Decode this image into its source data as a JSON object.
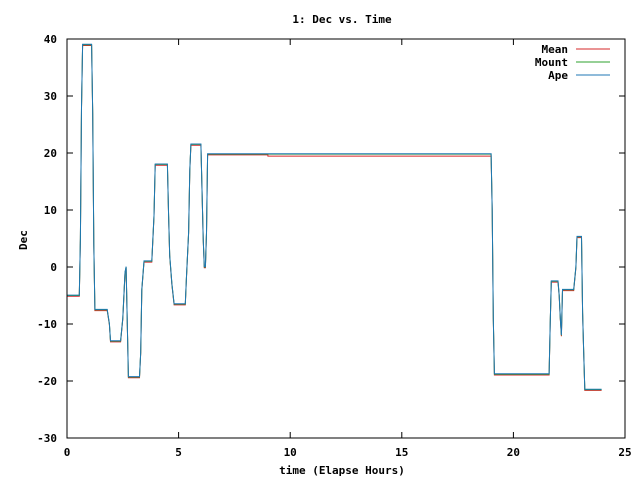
{
  "chart_data": {
    "type": "line",
    "title": "1: Dec vs. Time",
    "xlabel": "time (Elapse Hours)",
    "ylabel": "Dec",
    "xlim": [
      0,
      25
    ],
    "ylim": [
      -30,
      40
    ],
    "xticks": [
      0,
      5,
      10,
      15,
      20,
      25
    ],
    "yticks": [
      -30,
      -20,
      -10,
      0,
      10,
      20,
      30,
      40
    ],
    "xtick_labels": [
      "0",
      "5",
      "10",
      "15",
      "20",
      "25"
    ],
    "ytick_labels": [
      "-30",
      "-20",
      "-10",
      "0",
      "10",
      "20",
      "30",
      "40"
    ],
    "grid": false,
    "legend": "top-right",
    "series": [
      {
        "name": "Mean",
        "color": "#d62728",
        "points": [
          [
            0,
            -5
          ],
          [
            0.55,
            -5
          ],
          [
            0.6,
            5
          ],
          [
            0.65,
            28
          ],
          [
            0.7,
            39
          ],
          [
            1.1,
            39
          ],
          [
            1.15,
            27
          ],
          [
            1.2,
            4
          ],
          [
            1.25,
            -7.5
          ],
          [
            1.8,
            -7.5
          ],
          [
            1.9,
            -10
          ],
          [
            1.95,
            -13
          ],
          [
            2.4,
            -13
          ],
          [
            2.5,
            -9
          ],
          [
            2.55,
            -5
          ],
          [
            2.6,
            -1
          ],
          [
            2.65,
            0
          ],
          [
            2.7,
            -10
          ],
          [
            2.75,
            -19.3
          ],
          [
            3.25,
            -19.3
          ],
          [
            3.3,
            -15
          ],
          [
            3.35,
            -4
          ],
          [
            3.45,
            1
          ],
          [
            3.8,
            1
          ],
          [
            3.9,
            9
          ],
          [
            3.95,
            18
          ],
          [
            4.5,
            18
          ],
          [
            4.55,
            9
          ],
          [
            4.6,
            2
          ],
          [
            4.7,
            -3
          ],
          [
            4.8,
            -6.5
          ],
          [
            5.3,
            -6.5
          ],
          [
            5.35,
            -2
          ],
          [
            5.45,
            6
          ],
          [
            5.5,
            17
          ],
          [
            5.55,
            21.5
          ],
          [
            6.0,
            21.5
          ],
          [
            6.1,
            5
          ],
          [
            6.15,
            0
          ],
          [
            6.2,
            0
          ],
          [
            6.25,
            6
          ],
          [
            6.3,
            19.8
          ],
          [
            9,
            19.8
          ],
          [
            9,
            19.6
          ],
          [
            19.0,
            19.6
          ],
          [
            19.05,
            10
          ],
          [
            19.1,
            -9
          ],
          [
            19.15,
            -18.8
          ],
          [
            21.6,
            -18.8
          ],
          [
            21.65,
            -10
          ],
          [
            21.7,
            -2.5
          ],
          [
            22.0,
            -2.5
          ],
          [
            22.05,
            -5
          ],
          [
            22.1,
            -9
          ],
          [
            22.15,
            -12
          ],
          [
            22.2,
            -4
          ],
          [
            22.7,
            -4
          ],
          [
            22.8,
            0
          ],
          [
            22.85,
            5.3
          ],
          [
            23.05,
            5.3
          ],
          [
            23.1,
            -8
          ],
          [
            23.15,
            -15
          ],
          [
            23.2,
            -21.5
          ],
          [
            23.95,
            -21.5
          ]
        ]
      },
      {
        "name": "Mount",
        "color": "#2ca02c",
        "points": [
          [
            0,
            -5
          ],
          [
            0.55,
            -5
          ],
          [
            0.6,
            5
          ],
          [
            0.65,
            28
          ],
          [
            0.7,
            39
          ],
          [
            1.1,
            39
          ],
          [
            1.15,
            27
          ],
          [
            1.2,
            4
          ],
          [
            1.25,
            -7.5
          ],
          [
            1.8,
            -7.5
          ],
          [
            1.9,
            -10
          ],
          [
            1.95,
            -13
          ],
          [
            2.4,
            -13
          ],
          [
            2.5,
            -9
          ],
          [
            2.55,
            -5
          ],
          [
            2.6,
            -1
          ],
          [
            2.65,
            0
          ],
          [
            2.7,
            -10
          ],
          [
            2.75,
            -19.3
          ],
          [
            3.25,
            -19.3
          ],
          [
            3.3,
            -15
          ],
          [
            3.35,
            -4
          ],
          [
            3.45,
            1
          ],
          [
            3.8,
            1
          ],
          [
            3.9,
            9
          ],
          [
            3.95,
            18
          ],
          [
            4.5,
            18
          ],
          [
            4.55,
            9
          ],
          [
            4.6,
            2
          ],
          [
            4.7,
            -3
          ],
          [
            4.8,
            -6.5
          ],
          [
            5.3,
            -6.5
          ],
          [
            5.35,
            -2
          ],
          [
            5.45,
            6
          ],
          [
            5.5,
            17
          ],
          [
            5.55,
            21.5
          ],
          [
            6.0,
            21.5
          ],
          [
            6.1,
            5
          ],
          [
            6.15,
            0
          ],
          [
            6.2,
            0
          ],
          [
            6.25,
            6
          ],
          [
            6.3,
            19.8
          ],
          [
            19.0,
            19.8
          ],
          [
            19.05,
            10
          ],
          [
            19.1,
            -9
          ],
          [
            19.15,
            -18.8
          ],
          [
            21.6,
            -18.8
          ],
          [
            21.65,
            -10
          ],
          [
            21.7,
            -2.5
          ],
          [
            22.0,
            -2.5
          ],
          [
            22.05,
            -5
          ],
          [
            22.1,
            -9
          ],
          [
            22.15,
            -12
          ],
          [
            22.2,
            -4
          ],
          [
            22.7,
            -4
          ],
          [
            22.8,
            0
          ],
          [
            22.85,
            5.3
          ],
          [
            23.05,
            5.3
          ],
          [
            23.1,
            -8
          ],
          [
            23.15,
            -15
          ],
          [
            23.2,
            -21.5
          ],
          [
            23.95,
            -21.5
          ]
        ]
      },
      {
        "name": "Ape",
        "color": "#1f77b4",
        "points": [
          [
            0,
            -5
          ],
          [
            0.55,
            -5
          ],
          [
            0.6,
            5
          ],
          [
            0.65,
            28
          ],
          [
            0.7,
            39
          ],
          [
            1.1,
            39
          ],
          [
            1.15,
            27
          ],
          [
            1.2,
            4
          ],
          [
            1.25,
            -7.5
          ],
          [
            1.8,
            -7.5
          ],
          [
            1.9,
            -10
          ],
          [
            1.95,
            -13
          ],
          [
            2.4,
            -13
          ],
          [
            2.5,
            -9
          ],
          [
            2.55,
            -5
          ],
          [
            2.6,
            -1
          ],
          [
            2.65,
            0
          ],
          [
            2.7,
            -10
          ],
          [
            2.75,
            -19.3
          ],
          [
            3.25,
            -19.3
          ],
          [
            3.3,
            -15
          ],
          [
            3.35,
            -4
          ],
          [
            3.45,
            1
          ],
          [
            3.8,
            1
          ],
          [
            3.9,
            9
          ],
          [
            3.95,
            18
          ],
          [
            4.5,
            18
          ],
          [
            4.55,
            9
          ],
          [
            4.6,
            2
          ],
          [
            4.7,
            -3
          ],
          [
            4.8,
            -6.5
          ],
          [
            5.3,
            -6.5
          ],
          [
            5.35,
            -2
          ],
          [
            5.45,
            6
          ],
          [
            5.5,
            17
          ],
          [
            5.55,
            21.5
          ],
          [
            6.0,
            21.5
          ],
          [
            6.1,
            5
          ],
          [
            6.15,
            0
          ],
          [
            6.2,
            0
          ],
          [
            6.25,
            6
          ],
          [
            6.3,
            19.8
          ],
          [
            19.0,
            19.8
          ],
          [
            19.05,
            10
          ],
          [
            19.1,
            -9
          ],
          [
            19.15,
            -18.8
          ],
          [
            21.6,
            -18.8
          ],
          [
            21.65,
            -10
          ],
          [
            21.7,
            -2.5
          ],
          [
            22.0,
            -2.5
          ],
          [
            22.05,
            -5
          ],
          [
            22.1,
            -9
          ],
          [
            22.15,
            -12
          ],
          [
            22.2,
            -4
          ],
          [
            22.7,
            -4
          ],
          [
            22.8,
            0
          ],
          [
            22.85,
            5.3
          ],
          [
            23.05,
            5.3
          ],
          [
            23.1,
            -8
          ],
          [
            23.15,
            -15
          ],
          [
            23.2,
            -21.5
          ],
          [
            23.95,
            -21.5
          ]
        ]
      }
    ]
  }
}
